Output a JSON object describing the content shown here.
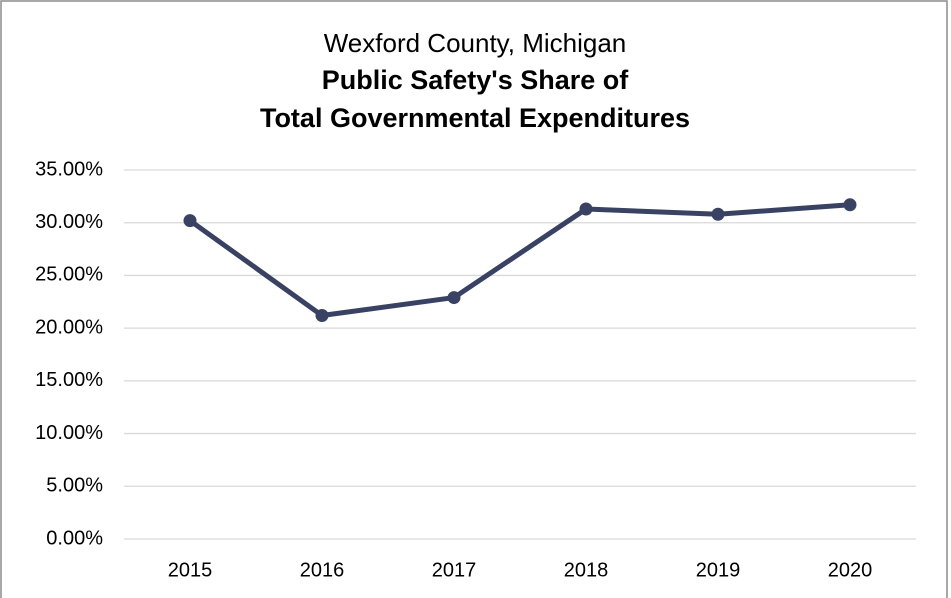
{
  "chart_data": {
    "type": "line",
    "subtitle": "Wexford County, Michigan",
    "title": [
      "Public Safety's Share of",
      "Total Governmental Expenditures"
    ],
    "categories": [
      "2015",
      "2016",
      "2017",
      "2018",
      "2019",
      "2020"
    ],
    "series": [
      {
        "name": "Public Safety Share",
        "color": "#394263",
        "values": [
          30.2,
          21.2,
          22.9,
          31.3,
          30.8,
          31.7
        ]
      }
    ],
    "ylim": [
      0,
      35
    ],
    "yticks": [
      {
        "value": 0,
        "label": "0.00%"
      },
      {
        "value": 5,
        "label": "5.00%"
      },
      {
        "value": 10,
        "label": "10.00%"
      },
      {
        "value": 15,
        "label": "15.00%"
      },
      {
        "value": 20,
        "label": "20.00%"
      },
      {
        "value": 25,
        "label": "25.00%"
      },
      {
        "value": 30,
        "label": "30.00%"
      },
      {
        "value": 35,
        "label": "35.00%"
      }
    ],
    "grid": true
  }
}
